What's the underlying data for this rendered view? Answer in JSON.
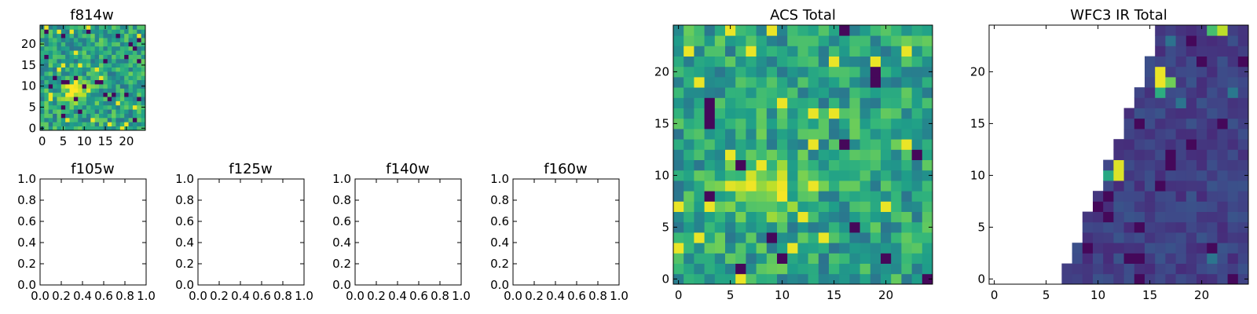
{
  "colormap": "viridis",
  "chart_data": [
    {
      "type": "heatmap",
      "title": "f814w",
      "xticks": [
        "0",
        "5",
        "10",
        "15",
        "20"
      ],
      "yticks": [
        "0",
        "5",
        "10",
        "15",
        "20"
      ],
      "xlim": [
        -0.5,
        24.5
      ],
      "ylim": [
        -0.5,
        24.5
      ],
      "grid_size": 25,
      "content": "noise with central bright source near x=8, y=9"
    },
    {
      "type": "heatmap",
      "title": "f105w",
      "empty": true,
      "xticks": [
        "0.0",
        "0.2",
        "0.4",
        "0.6",
        "0.8",
        "1.0"
      ],
      "yticks": [
        "0.0",
        "0.2",
        "0.4",
        "0.6",
        "0.8",
        "1.0"
      ],
      "xlim": [
        0,
        1
      ],
      "ylim": [
        0,
        1
      ]
    },
    {
      "type": "heatmap",
      "title": "f125w",
      "empty": true,
      "xticks": [
        "0.0",
        "0.2",
        "0.4",
        "0.6",
        "0.8",
        "1.0"
      ],
      "yticks": [
        "0.0",
        "0.2",
        "0.4",
        "0.6",
        "0.8",
        "1.0"
      ],
      "xlim": [
        0,
        1
      ],
      "ylim": [
        0,
        1
      ]
    },
    {
      "type": "heatmap",
      "title": "f140w",
      "empty": true,
      "xticks": [
        "0.0",
        "0.2",
        "0.4",
        "0.6",
        "0.8",
        "1.0"
      ],
      "yticks": [
        "0.0",
        "0.2",
        "0.4",
        "0.6",
        "0.8",
        "1.0"
      ],
      "xlim": [
        0,
        1
      ],
      "ylim": [
        0,
        1
      ]
    },
    {
      "type": "heatmap",
      "title": "f160w",
      "empty": true,
      "xticks": [
        "0.0",
        "0.2",
        "0.4",
        "0.6",
        "0.8",
        "1.0"
      ],
      "yticks": [
        "0.0",
        "0.2",
        "0.4",
        "0.6",
        "0.8",
        "1.0"
      ],
      "xlim": [
        0,
        1
      ],
      "ylim": [
        0,
        1
      ]
    },
    {
      "type": "heatmap",
      "title": "ACS Total",
      "xticks": [
        "0",
        "5",
        "10",
        "15",
        "20"
      ],
      "yticks": [
        "0",
        "5",
        "10",
        "15",
        "20"
      ],
      "xlim": [
        -0.5,
        24.5
      ],
      "ylim": [
        -0.5,
        24.5
      ],
      "grid_size": 25,
      "content": "noise with central bright source near x=8, y=9"
    },
    {
      "type": "heatmap",
      "title": "WFC3 IR Total",
      "xticks": [
        "0",
        "5",
        "10",
        "15",
        "20"
      ],
      "yticks": [
        "0",
        "5",
        "10",
        "15",
        "20"
      ],
      "xlim": [
        -0.5,
        24.5
      ],
      "ylim": [
        -0.5,
        24.5
      ],
      "grid_size": 25,
      "content": "mostly dark field with blank (no data) triangular region on left; bright pixels near (16,20) and (12,11)"
    }
  ]
}
